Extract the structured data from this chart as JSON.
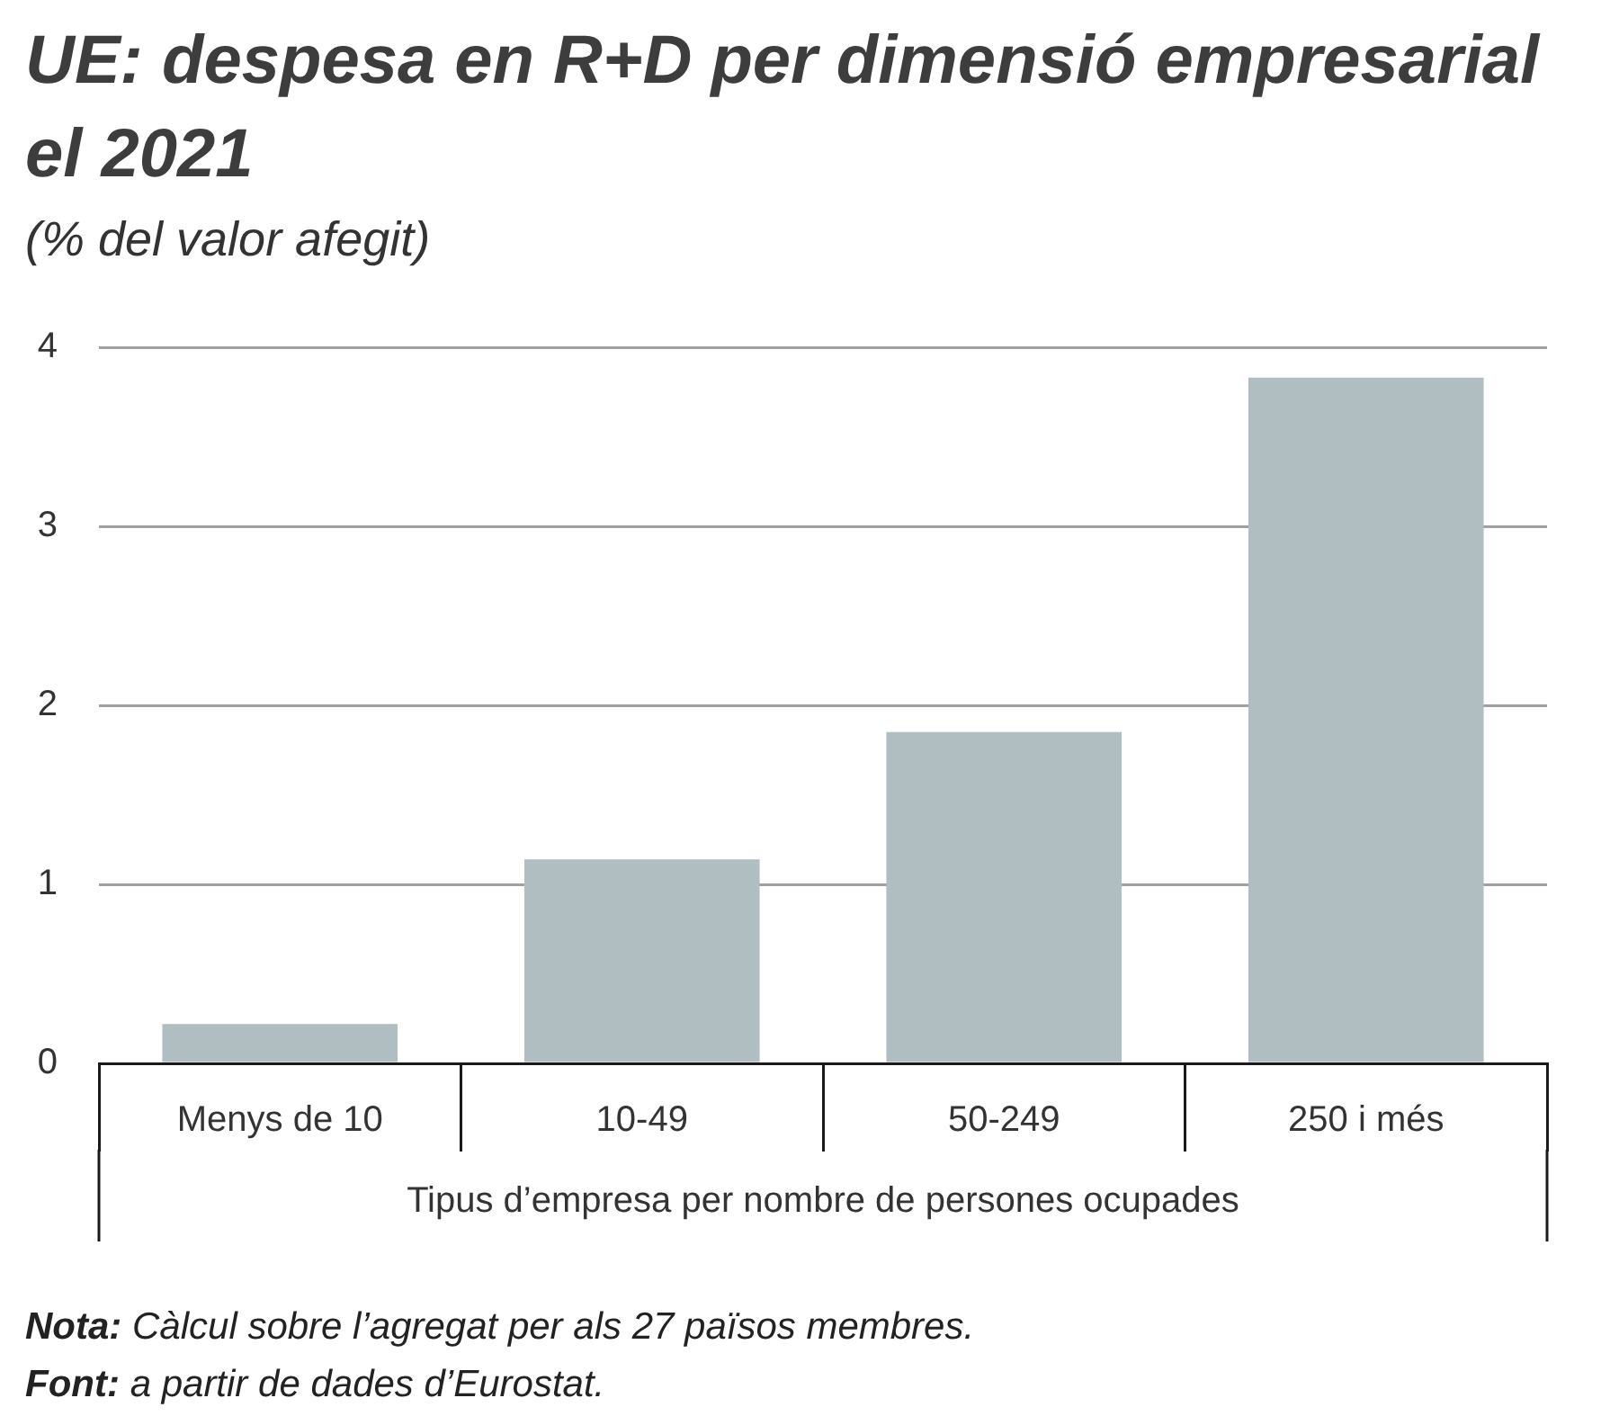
{
  "chart_data": {
    "type": "bar",
    "title": "UE: despesa en R+D per dimensió empresarial el 2021",
    "subtitle": "(% del valor afegit)",
    "xlabel": "Tipus d’empresa per nombre de persones ocupades",
    "categories": [
      "Menys de 10",
      "10-49",
      "50-249",
      "250 i més"
    ],
    "values": [
      0.22,
      1.14,
      1.85,
      3.83
    ],
    "color": "#b0bdc1",
    "ylim": [
      0,
      4
    ],
    "yticks": [
      0,
      1,
      2,
      3,
      4
    ],
    "grid": "y",
    "legend": false,
    "annotations": [
      "Nota: Càlcul sobre l’agregat per als 27 països membres.",
      "Font: a partir de dades d’Eurostat."
    ]
  }
}
